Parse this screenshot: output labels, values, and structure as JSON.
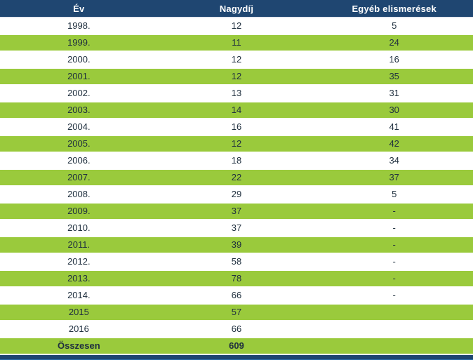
{
  "colors": {
    "header_bg": "#1f4671",
    "header_text": "#ffffff",
    "stripe_green": "#9aca3c",
    "row_text": "#20303f",
    "bottom_bar": "#1f4671"
  },
  "chart_data": {
    "type": "table",
    "columns": [
      "Év",
      "Nagydíj",
      "Egyéb elismerések"
    ],
    "rows": [
      [
        "1998.",
        "12",
        "5"
      ],
      [
        "1999.",
        "11",
        "24"
      ],
      [
        "2000.",
        "12",
        "16"
      ],
      [
        "2001.",
        "12",
        "35"
      ],
      [
        "2002.",
        "13",
        "31"
      ],
      [
        "2003.",
        "14",
        "30"
      ],
      [
        "2004.",
        "16",
        "41"
      ],
      [
        "2005.",
        "12",
        "42"
      ],
      [
        "2006.",
        "18",
        "34"
      ],
      [
        "2007.",
        "22",
        "37"
      ],
      [
        "2008.",
        "29",
        "5"
      ],
      [
        "2009.",
        "37",
        "-"
      ],
      [
        "2010.",
        "37",
        "-"
      ],
      [
        "2011.",
        "39",
        "-"
      ],
      [
        "2012.",
        "58",
        "-"
      ],
      [
        "2013.",
        "78",
        "-"
      ],
      [
        "2014.",
        "66",
        "-"
      ],
      [
        "2015",
        "57",
        ""
      ],
      [
        "2016",
        "66",
        ""
      ]
    ],
    "footer": [
      "Összesen",
      "609",
      ""
    ],
    "layout": {
      "stripe_pattern": "alternating white/green starting white at 1998, total row green bold",
      "alignment": "all columns centered"
    }
  }
}
